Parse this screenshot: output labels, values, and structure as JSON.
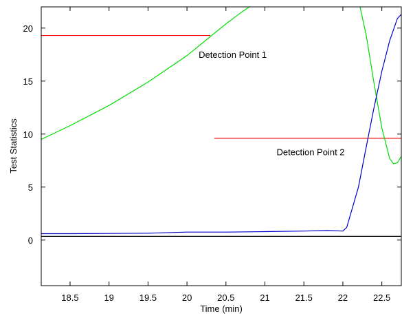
{
  "chart_data": {
    "type": "line",
    "title": "",
    "xlabel": "Time (min)",
    "ylabel": "Test Statistics",
    "xlim": [
      18.13,
      22.75
    ],
    "ylim": [
      -4.3,
      22
    ],
    "grid": false,
    "x_ticks": [
      18.5,
      19,
      19.5,
      20,
      20.5,
      21,
      21.5,
      22,
      22.5
    ],
    "y_ticks": [
      0,
      5,
      10,
      15,
      20
    ],
    "x_tick_labels": [
      "18.5",
      "19",
      "19.5",
      "20",
      "20.5",
      "21",
      "21.5",
      "22",
      "22.5"
    ],
    "y_tick_labels": [
      "0",
      "5",
      "10",
      "15",
      "20"
    ],
    "series": [
      {
        "color": "#00dd00",
        "segments": [
          [
            [
              18.13,
              9.5
            ],
            [
              18.5,
              10.8
            ],
            [
              19.0,
              12.7
            ],
            [
              19.5,
              14.9
            ],
            [
              20.0,
              17.4
            ],
            [
              20.3,
              19.2
            ],
            [
              20.5,
              20.4
            ],
            [
              20.7,
              21.5
            ],
            [
              20.8,
              22.0
            ]
          ],
          [
            [
              22.22,
              22.0
            ],
            [
              22.3,
              19.3
            ],
            [
              22.4,
              14.8
            ],
            [
              22.5,
              10.6
            ],
            [
              22.6,
              7.7
            ],
            [
              22.65,
              7.2
            ],
            [
              22.7,
              7.3
            ],
            [
              22.75,
              7.9
            ]
          ]
        ]
      },
      {
        "color": "#0000cc",
        "segments": [
          [
            [
              18.13,
              0.6
            ],
            [
              18.5,
              0.6
            ],
            [
              19.0,
              0.62
            ],
            [
              19.5,
              0.65
            ],
            [
              20.0,
              0.75
            ],
            [
              20.5,
              0.75
            ],
            [
              21.0,
              0.8
            ],
            [
              21.5,
              0.85
            ],
            [
              21.8,
              0.9
            ],
            [
              22.0,
              0.85
            ],
            [
              22.05,
              1.2
            ],
            [
              22.2,
              5.0
            ],
            [
              22.3,
              8.8
            ],
            [
              22.4,
              12.5
            ],
            [
              22.5,
              15.9
            ],
            [
              22.6,
              18.8
            ],
            [
              22.7,
              20.9
            ],
            [
              22.75,
              21.3
            ]
          ]
        ]
      },
      {
        "color": "#000000",
        "segments": [
          [
            [
              18.13,
              0.35
            ],
            [
              22.75,
              0.35
            ]
          ]
        ]
      }
    ],
    "threshold_lines": [
      {
        "color": "#ff0000",
        "x": [
          18.13,
          20.3
        ],
        "y": 19.3
      },
      {
        "color": "#ff0000",
        "x": [
          20.35,
          22.75
        ],
        "y": 9.6
      }
    ],
    "annotations": [
      {
        "text": "Detection Point 1",
        "x": 20.15,
        "y": 17.2
      },
      {
        "text": "Detection Point 2",
        "x": 21.15,
        "y": 8.0
      }
    ]
  }
}
